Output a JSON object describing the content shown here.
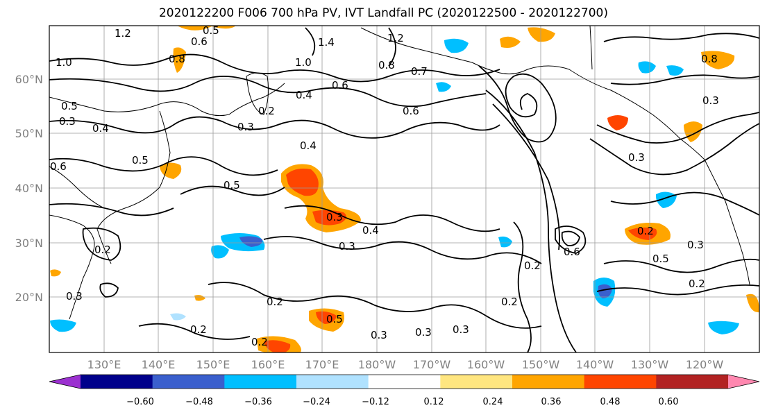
{
  "title": "2020122200 F006 700 hPa PV, IVT Landfall PC (2020122500 - 2020122700)",
  "lat_labels": [
    "60°N",
    "50°N",
    "40°N",
    "30°N",
    "20°N"
  ],
  "lon_labels": [
    "130°E",
    "140°E",
    "150°E",
    "160°E",
    "170°E",
    "180°W",
    "170°W",
    "160°W",
    "150°W",
    "140°W",
    "130°W",
    "120°W"
  ],
  "colorbar": {
    "ticks": [
      "−0.60",
      "−0.48",
      "−0.36",
      "−0.24",
      "−0.12",
      "0.12",
      "0.24",
      "0.36",
      "0.48",
      "0.60"
    ],
    "colors": [
      "#9b30d0",
      "#00008b",
      "#3a5fcd",
      "#00bfff",
      "#b0e2ff",
      "#ffffff",
      "#ffe680",
      "#ffa500",
      "#ff4500",
      "#b22222",
      "#ff88b0"
    ]
  },
  "contour_labels": [
    "1.2",
    "0.5",
    "0.6",
    "1.4",
    "1.0",
    "1.2",
    "0.8",
    "1.0",
    "0.8",
    "0.7",
    "0.6",
    "0.8",
    "0.5",
    "0.3",
    "0.4",
    "0.2",
    "0.4",
    "0.6",
    "0.3",
    "0.6",
    "0.5",
    "0.4",
    "0.5",
    "0.3",
    "0.4",
    "0.3",
    "0.2",
    "0.5",
    "0.3",
    "0.2",
    "0.3",
    "0.2",
    "0.2",
    "0.3",
    "0.3",
    "0.2",
    "0.3",
    "0.2",
    "0.2",
    "0.3",
    "0.2",
    "0.5",
    "0.3",
    "0.6"
  ]
}
